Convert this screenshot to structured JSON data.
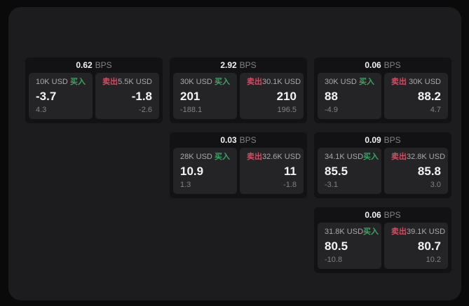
{
  "labels": {
    "bps_unit": "BPS",
    "buy": "买入",
    "sell": "卖出"
  },
  "colors": {
    "page_bg": "#0a0a0a",
    "surface_bg": "#1c1c1e",
    "card_bg": "#121214",
    "panel_bg": "#242427",
    "text_primary": "#f3f3f4",
    "text_secondary": "#a9a9ad",
    "text_muted": "#828286",
    "buy_green": "#3aa564",
    "sell_red": "#cc4f63"
  },
  "cards": [
    {
      "row": 1,
      "col": 1,
      "bps": "0.62",
      "buy": {
        "amount": "10K USD",
        "price": "-3.7",
        "delta": "4.3"
      },
      "sell": {
        "amount": "5.5K USD",
        "price": "-1.8",
        "delta": "-2.6"
      }
    },
    {
      "row": 1,
      "col": 2,
      "bps": "2.92",
      "buy": {
        "amount": "30K USD",
        "price": "201",
        "delta": "-188.1"
      },
      "sell": {
        "amount": "30.1K USD",
        "price": "210",
        "delta": "196.5"
      }
    },
    {
      "row": 1,
      "col": 3,
      "bps": "0.06",
      "buy": {
        "amount": "30K USD",
        "price": "88",
        "delta": "-4.9"
      },
      "sell": {
        "amount": "30K USD",
        "price": "88.2",
        "delta": "4.7"
      }
    },
    {
      "row": 2,
      "col": 2,
      "bps": "0.03",
      "buy": {
        "amount": "28K USD",
        "price": "10.9",
        "delta": "1.3"
      },
      "sell": {
        "amount": "32.6K USD",
        "price": "11",
        "delta": "-1.8"
      }
    },
    {
      "row": 2,
      "col": 3,
      "bps": "0.09",
      "buy": {
        "amount": "34.1K USD",
        "price": "85.5",
        "delta": "-3.1"
      },
      "sell": {
        "amount": "32.8K USD",
        "price": "85.8",
        "delta": "3.0"
      }
    },
    {
      "row": 3,
      "col": 3,
      "bps": "0.06",
      "buy": {
        "amount": "31.8K USD",
        "price": "80.5",
        "delta": "-10.8"
      },
      "sell": {
        "amount": "39.1K USD",
        "price": "80.7",
        "delta": "10.2"
      }
    }
  ]
}
